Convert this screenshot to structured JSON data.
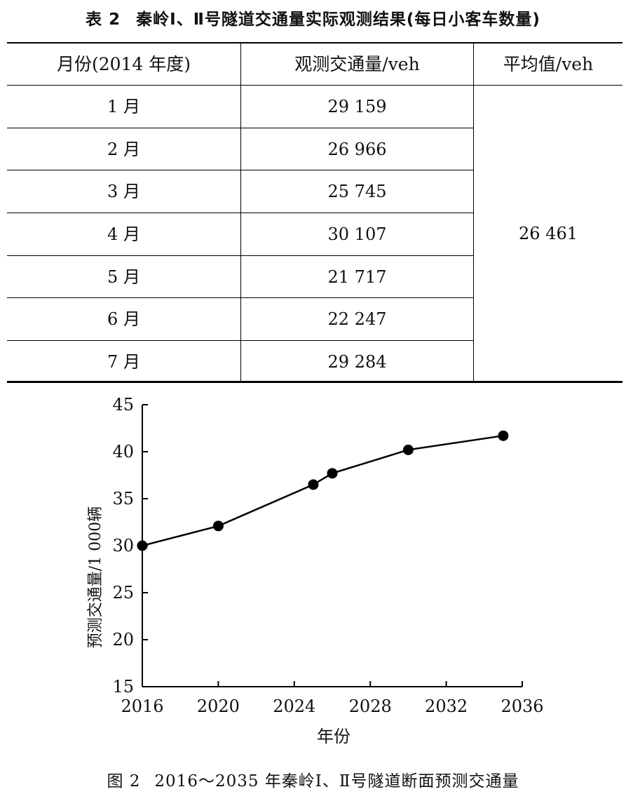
{
  "table": {
    "label": "表 2",
    "title": "秦岭Ⅰ、Ⅱ号隧道交通量实际观测结果(每日小客车数量)",
    "headers": [
      "月份(2014 年度)",
      "观测交通量/veh",
      "平均值/veh"
    ],
    "rows": [
      {
        "month": "1 月",
        "volume": "29 159"
      },
      {
        "month": "2 月",
        "volume": "26 966"
      },
      {
        "month": "3 月",
        "volume": "25 745"
      },
      {
        "month": "4 月",
        "volume": "30 107"
      },
      {
        "month": "5 月",
        "volume": "21 717"
      },
      {
        "month": "6 月",
        "volume": "22 247"
      },
      {
        "month": "7 月",
        "volume": "29 284"
      }
    ],
    "average": "26 461"
  },
  "chart_data": {
    "type": "line",
    "title": "",
    "xlabel": "年份",
    "ylabel": "预测交通量/1 000辆",
    "x": [
      2016,
      2020,
      2025,
      2026,
      2030,
      2035
    ],
    "series": [
      {
        "values": [
          30.0,
          32.1,
          36.5,
          37.7,
          40.2,
          41.7
        ]
      }
    ],
    "xlim": [
      2016,
      2036
    ],
    "ylim": [
      15,
      45
    ],
    "xticks": [
      2016,
      2020,
      2024,
      2028,
      2032,
      2036
    ],
    "yticks": [
      15,
      20,
      25,
      30,
      35,
      40,
      45
    ],
    "grid": false,
    "marker": "filled-circle",
    "color": "#000000"
  },
  "figure": {
    "label": "图 2",
    "caption": "2016～2035 年秦岭Ⅰ、Ⅱ号隧道断面预测交通量"
  }
}
